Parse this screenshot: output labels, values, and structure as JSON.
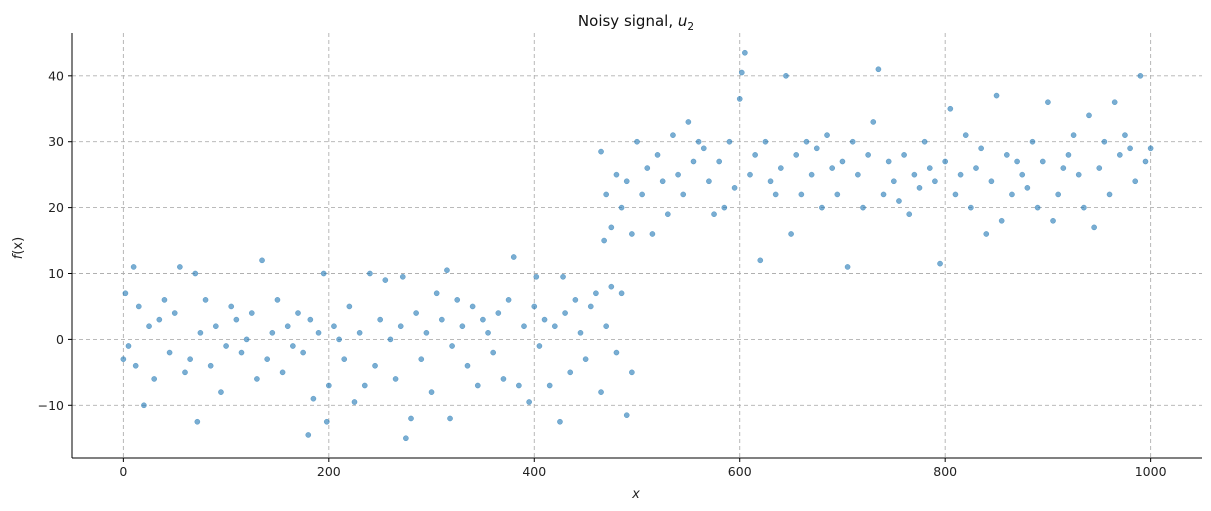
{
  "chart_data": {
    "type": "scatter",
    "title_main": "Noisy signal, ",
    "title_var": "u",
    "title_sub": "2",
    "xlabel": "x",
    "ylabel_f": "f",
    "ylabel_rest": "(x)",
    "xlim": [
      -50,
      1050
    ],
    "ylim": [
      -18,
      46.5
    ],
    "xticks": [
      0,
      200,
      400,
      600,
      800,
      1000
    ],
    "yticks": [
      -10,
      0,
      10,
      20,
      30,
      40
    ],
    "xtick_labels": [
      "0",
      "200",
      "400",
      "600",
      "800",
      "1000"
    ],
    "ytick_labels": [
      "−10",
      "0",
      "10",
      "20",
      "30",
      "40"
    ],
    "grid": true,
    "color": "#1f77b4",
    "series": [
      {
        "x": [
          0,
          2,
          5,
          10,
          12,
          15,
          20,
          25,
          30,
          35,
          40,
          45,
          50,
          55,
          60,
          65,
          70,
          72,
          75,
          80,
          85,
          90,
          95,
          100,
          105,
          110,
          115,
          120,
          125,
          130,
          135,
          140,
          145,
          150,
          155,
          160,
          165,
          170,
          175,
          180,
          182,
          185,
          190,
          195,
          198,
          200,
          205,
          210,
          215,
          220,
          225,
          230,
          235,
          240,
          245,
          250,
          255,
          260,
          265,
          270,
          272,
          275,
          280,
          285,
          290,
          295,
          300,
          305,
          310,
          315,
          318,
          320,
          325,
          330,
          335,
          340,
          345,
          350,
          355,
          360,
          365,
          370,
          375,
          380,
          385,
          390,
          395,
          400,
          402,
          405,
          410,
          415,
          420,
          425,
          428,
          430,
          435,
          440,
          445,
          450,
          455,
          460,
          465,
          470,
          475,
          480,
          485,
          490,
          495
        ],
        "y": [
          -3,
          7,
          -1,
          11,
          -4,
          5,
          -10,
          2,
          -6,
          3,
          6,
          -2,
          4,
          11,
          -5,
          -3,
          10,
          -12.5,
          1,
          6,
          -4,
          2,
          -8,
          -1,
          5,
          3,
          -2,
          0,
          4,
          -6,
          12,
          -3,
          1,
          6,
          -5,
          2,
          -1,
          4,
          -2,
          -14.5,
          3,
          -9,
          1,
          10,
          -12.5,
          -7,
          2,
          0,
          -3,
          5,
          -9.5,
          1,
          -7,
          10,
          -4,
          3,
          9,
          0,
          -6,
          2,
          9.5,
          -15,
          -12,
          4,
          -3,
          1,
          -8,
          7,
          3,
          10.5,
          -12,
          -1,
          6,
          2,
          -4,
          5,
          -7,
          3,
          1,
          -2,
          4,
          -6,
          6,
          12.5,
          -7,
          2,
          -9.5,
          5,
          9.5,
          -1,
          3,
          -7,
          2,
          -12.5,
          9.5,
          4,
          -5,
          6,
          1,
          -3,
          5,
          7,
          -8,
          2,
          8,
          -2,
          7,
          -11.5,
          -5
        ]
      },
      {
        "x": [
          465,
          468,
          470,
          475,
          480,
          485,
          490,
          495,
          500,
          505,
          510,
          515,
          520,
          525,
          530,
          535,
          540,
          545,
          550,
          555,
          560,
          565,
          570,
          575,
          580,
          585,
          590,
          595,
          600,
          602,
          605,
          610,
          615,
          620,
          625,
          630,
          635,
          640,
          645,
          650,
          655,
          660,
          665,
          670,
          675,
          680,
          685,
          690,
          695,
          700,
          705,
          710,
          715,
          720,
          725,
          730,
          735,
          740,
          745,
          750,
          755,
          760,
          765,
          770,
          775,
          780,
          785,
          790,
          795,
          800,
          805,
          810,
          815,
          820,
          825,
          830,
          835,
          840,
          845,
          850,
          855,
          860,
          865,
          870,
          875,
          880,
          885,
          890,
          895,
          900,
          905,
          910,
          915,
          920,
          925,
          930,
          935,
          940,
          945,
          950,
          955,
          960,
          965,
          970,
          975,
          980,
          985,
          990,
          995,
          1000
        ],
        "y": [
          28.5,
          15,
          22,
          17,
          25,
          20,
          24,
          16,
          30,
          22,
          26,
          16,
          28,
          24,
          19,
          31,
          25,
          22,
          33,
          27,
          30,
          29,
          24,
          19,
          27,
          20,
          30,
          23,
          36.5,
          40.5,
          43.5,
          25,
          28,
          12,
          30,
          24,
          22,
          26,
          40,
          16,
          28,
          22,
          30,
          25,
          29,
          20,
          31,
          26,
          22,
          27,
          11,
          30,
          25,
          20,
          28,
          33,
          41,
          22,
          27,
          24,
          21,
          28,
          19,
          25,
          23,
          30,
          26,
          24,
          11.5,
          27,
          35,
          22,
          25,
          31,
          20,
          26,
          29,
          16,
          24,
          37,
          18,
          28,
          22,
          27,
          25,
          23,
          30,
          20,
          27,
          36,
          18,
          22,
          26,
          28,
          31,
          25,
          20,
          34,
          17,
          26,
          30,
          22,
          36,
          28,
          31,
          29,
          24,
          40,
          27,
          29
        ]
      }
    ]
  }
}
